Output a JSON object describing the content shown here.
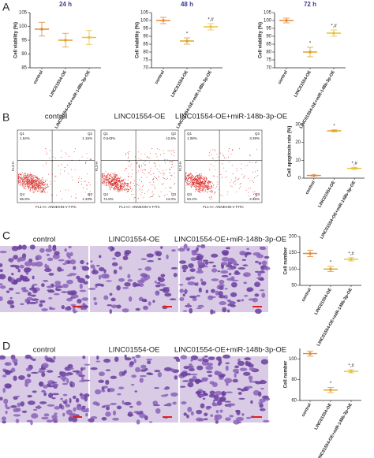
{
  "panel_letters": [
    "A",
    "B",
    "C",
    "D"
  ],
  "chart_data": [
    {
      "type": "dotplot",
      "title": "24 h",
      "y_label": "Cell viability (%)",
      "categories": [
        "control",
        "LINC01554-OE",
        "LINC01554-OE+miR-148b-3p-OE"
      ],
      "values": [
        99,
        95,
        96
      ],
      "errors": [
        2.5,
        2.5,
        2.5
      ],
      "colors": [
        "#e58a3a",
        "#e0a02c",
        "#e8c23c"
      ],
      "annotations": [
        null,
        null,
        null
      ],
      "ylim": [
        85,
        105
      ],
      "yticks": [
        85,
        90,
        95,
        100,
        105
      ]
    },
    {
      "type": "dotplot",
      "title": "48 h",
      "y_label": "Cell viability (%)",
      "categories": [
        "control",
        "LINC01554-OE",
        "LINC01554-OE+miR-148b-3p-OE"
      ],
      "values": [
        100,
        87,
        96
      ],
      "errors": [
        2,
        2,
        2
      ],
      "colors": [
        "#e58a3a",
        "#e0a02c",
        "#e8c23c"
      ],
      "annotations": [
        null,
        "*",
        "*,#"
      ],
      "ylim": [
        70,
        105
      ],
      "yticks": [
        70,
        75,
        80,
        85,
        90,
        95,
        100,
        105
      ]
    },
    {
      "type": "dotplot",
      "title": "72 h",
      "y_label": "Cell viability (%)",
      "categories": [
        "control",
        "LINC01554-OE",
        "LINC01554-OE+miR-148b-3p-OE"
      ],
      "values": [
        100,
        80,
        92
      ],
      "errors": [
        1.5,
        3,
        2
      ],
      "colors": [
        "#e58a3a",
        "#e0a02c",
        "#e8c23c"
      ],
      "annotations": [
        null,
        "*",
        "*,#"
      ],
      "ylim": [
        70,
        105
      ],
      "yticks": [
        70,
        75,
        80,
        85,
        90,
        95,
        100,
        105
      ]
    },
    {
      "type": "dotplot",
      "y_label": "Cell apoptosis rate (%)",
      "categories": [
        "control",
        "LINC01554-OE",
        "LINC01554-OE+miR-148b-3p-OE"
      ],
      "values": [
        1.5,
        26.5,
        5.5
      ],
      "errors": [
        0.3,
        0.5,
        0.6
      ],
      "colors": [
        "#e58a3a",
        "#e0a02c",
        "#e8c23c"
      ],
      "annotations": [
        null,
        "*",
        "*,#"
      ],
      "ylim": [
        0,
        30
      ],
      "yticks": [
        0,
        10,
        20,
        30
      ]
    },
    {
      "type": "dotplot",
      "y_label": "Cell number",
      "categories": [
        "control",
        "LINC01554-OE",
        "LINC01554-OE+miR-148b-3p-OE"
      ],
      "values": [
        148,
        100,
        130
      ],
      "errors": [
        10,
        8,
        5
      ],
      "colors": [
        "#e58a3a",
        "#e0a02c",
        "#e8c23c"
      ],
      "annotations": [
        null,
        "*",
        "*,#"
      ],
      "ylim": [
        50,
        200
      ],
      "yticks": [
        50,
        100,
        150,
        200
      ]
    },
    {
      "type": "dotplot",
      "y_label": "Cell number",
      "categories": [
        "control",
        "LINC01554-OE",
        "LINC01554-OE+miR-148b-3p-OE"
      ],
      "values": [
        105,
        70,
        88
      ],
      "errors": [
        2.5,
        2.5,
        1.5
      ],
      "colors": [
        "#e58a3a",
        "#e0a02c",
        "#e8c23c"
      ],
      "annotations": [
        null,
        "*",
        "*,#"
      ],
      "ylim": [
        60,
        110
      ],
      "yticks": [
        60,
        80,
        100
      ]
    }
  ],
  "flow": {
    "titles": [
      "control",
      "LINC01554-OE",
      "LINC01554-OE+miR-148b-3p-OE"
    ],
    "quadrant_names": [
      "Q1",
      "Q2",
      "Q3",
      "Q4"
    ],
    "x_label": "FL1-H:: ANNEXIN-V FITC",
    "y_label": "FL3-H",
    "panels": [
      {
        "quadrants": [
          "1.54%",
          "1.15%",
          "1.40%",
          "95.9%"
        ]
      },
      {
        "quadrants": [
          "0.643%",
          "12.6%",
          "14.0%",
          "72.8%"
        ]
      },
      {
        "quadrants": [
          "1.08%",
          "3.39%",
          "2.26%",
          "93.2%"
        ]
      }
    ]
  },
  "migration": {
    "titles": [
      "control",
      "LINC01554-OE",
      "LINC01554-OE+miR-148b-3p-OE"
    ]
  },
  "invasion": {
    "titles": [
      "control",
      "LINC01554-OE",
      "LINC01554-OE+miR-148b-3p-OE"
    ]
  }
}
